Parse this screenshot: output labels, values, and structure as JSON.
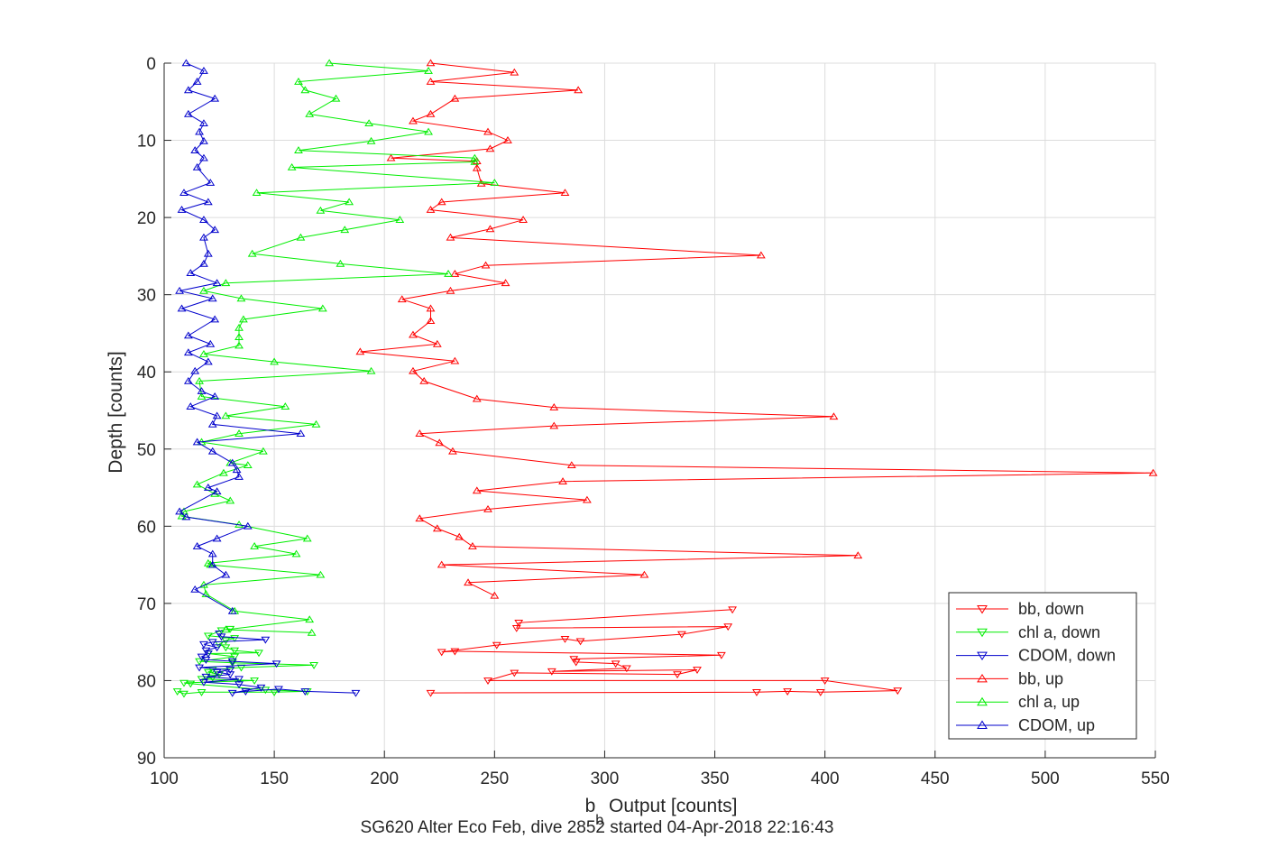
{
  "chart_data": {
    "type": "line",
    "orientation": "depth-profile",
    "xlabel": "b",
    "xlabel_subscript": "b",
    "xlabel_suffix": " Output [counts]",
    "ylabel": "Depth [counts]",
    "subtitle": "SG620 Alter Eco Feb, dive 2852 started 04-Apr-2018 22:16:43",
    "xlim": [
      100,
      550
    ],
    "ylim": [
      0,
      90
    ],
    "y_reversed": true,
    "grid": true,
    "legend_position": "bottom-right",
    "x_ticks": [
      100,
      150,
      200,
      250,
      300,
      350,
      400,
      450,
      500,
      550
    ],
    "y_ticks": [
      0,
      10,
      20,
      30,
      40,
      50,
      60,
      70,
      80,
      90
    ],
    "series": [
      {
        "name": "bb, down",
        "color": "#ff0000",
        "marker": "triangle-down",
        "points": [
          [
            221,
            81.6
          ],
          [
            369,
            81.5
          ],
          [
            383,
            81.4
          ],
          [
            398,
            81.5
          ],
          [
            433,
            81.3
          ],
          [
            400,
            80
          ],
          [
            247,
            80
          ],
          [
            259,
            79
          ],
          [
            333,
            79.2
          ],
          [
            342,
            78.6
          ],
          [
            276,
            78.8
          ],
          [
            310,
            78.4
          ],
          [
            305,
            77.8
          ],
          [
            287,
            77.6
          ],
          [
            286,
            77.2
          ],
          [
            353,
            76.7
          ],
          [
            232,
            76.2
          ],
          [
            226,
            76.3
          ],
          [
            251,
            75.4
          ],
          [
            282,
            74.6
          ],
          [
            289,
            74.9
          ],
          [
            335,
            74
          ],
          [
            356,
            73
          ],
          [
            260,
            73.2
          ],
          [
            261,
            72.5
          ],
          [
            358,
            70.8
          ]
        ]
      },
      {
        "name": "chl a, down",
        "color": "#00ee00",
        "marker": "triangle-down",
        "points": [
          [
            106,
            81.4
          ],
          [
            109,
            81.7
          ],
          [
            117,
            81.5
          ],
          [
            150,
            81.5
          ],
          [
            165,
            81.4
          ],
          [
            146,
            81.2
          ],
          [
            112,
            80.4
          ],
          [
            109,
            80.3
          ],
          [
            141,
            80
          ],
          [
            117,
            79.8
          ],
          [
            122,
            79.6
          ],
          [
            125,
            79.2
          ],
          [
            120,
            78.9
          ],
          [
            122,
            78.6
          ],
          [
            135,
            78.3
          ],
          [
            168,
            78
          ],
          [
            131,
            77.7
          ],
          [
            116,
            77.5
          ],
          [
            132,
            76.9
          ],
          [
            120,
            76.5
          ],
          [
            143,
            76.4
          ],
          [
            132,
            76.1
          ],
          [
            128,
            75.7
          ],
          [
            125,
            75.3
          ],
          [
            128,
            74.8
          ],
          [
            132,
            74.5
          ],
          [
            120,
            74.2
          ],
          [
            126,
            73.5
          ],
          [
            130,
            73.3
          ]
        ]
      },
      {
        "name": "CDOM, down",
        "color": "#0000cc",
        "marker": "triangle-down",
        "points": [
          [
            187,
            81.6
          ],
          [
            164,
            81.4
          ],
          [
            152,
            81.1
          ],
          [
            137,
            81.4
          ],
          [
            131,
            81.6
          ],
          [
            144,
            80.9
          ],
          [
            134,
            80.5
          ],
          [
            118,
            80.2
          ],
          [
            134,
            79.8
          ],
          [
            119,
            79.5
          ],
          [
            130,
            79.2
          ],
          [
            124,
            78.9
          ],
          [
            130,
            78.6
          ],
          [
            116,
            78.3
          ],
          [
            151,
            77.8
          ],
          [
            131,
            77.5
          ],
          [
            119,
            77.3
          ],
          [
            117,
            76.9
          ],
          [
            120,
            76.5
          ],
          [
            119,
            76.1
          ],
          [
            124,
            75.7
          ],
          [
            118,
            75.3
          ],
          [
            122,
            75
          ],
          [
            146,
            74.7
          ],
          [
            126,
            74.3
          ],
          [
            125,
            73.9
          ]
        ]
      },
      {
        "name": "bb, up",
        "color": "#ff0000",
        "marker": "triangle-up",
        "points": [
          [
            221,
            0
          ],
          [
            259,
            1.2
          ],
          [
            221,
            2.4
          ],
          [
            288,
            3.5
          ],
          [
            232,
            4.6
          ],
          [
            221,
            6.6
          ],
          [
            213,
            7.5
          ],
          [
            247,
            8.9
          ],
          [
            256,
            10
          ],
          [
            248,
            11.1
          ],
          [
            203,
            12.3
          ],
          [
            242,
            12.7
          ],
          [
            242,
            13.6
          ],
          [
            244,
            15.6
          ],
          [
            282,
            16.8
          ],
          [
            226,
            18
          ],
          [
            221,
            19
          ],
          [
            263,
            20.3
          ],
          [
            248,
            21.5
          ],
          [
            230,
            22.6
          ],
          [
            371,
            24.9
          ],
          [
            246,
            26.2
          ],
          [
            232,
            27.3
          ],
          [
            255,
            28.5
          ],
          [
            230,
            29.5
          ],
          [
            208,
            30.6
          ],
          [
            221,
            31.8
          ],
          [
            221,
            33.4
          ],
          [
            213,
            35.2
          ],
          [
            224,
            36.4
          ],
          [
            189,
            37.4
          ],
          [
            232,
            38.6
          ],
          [
            213,
            39.9
          ],
          [
            218,
            41.2
          ],
          [
            242,
            43.5
          ],
          [
            277,
            44.6
          ],
          [
            404,
            45.8
          ],
          [
            277,
            47
          ],
          [
            216,
            48
          ],
          [
            225,
            49.2
          ],
          [
            231,
            50.3
          ],
          [
            285,
            52.1
          ],
          [
            549,
            53.1
          ],
          [
            281,
            54.2
          ],
          [
            242,
            55.4
          ],
          [
            292,
            56.6
          ],
          [
            247,
            57.8
          ],
          [
            216,
            59
          ],
          [
            224,
            60.3
          ],
          [
            234,
            61.4
          ],
          [
            240,
            62.6
          ],
          [
            415,
            63.8
          ],
          [
            226,
            65
          ],
          [
            318,
            66.3
          ],
          [
            238,
            67.3
          ],
          [
            250,
            69
          ]
        ]
      },
      {
        "name": "chl a, up",
        "color": "#00ee00",
        "marker": "triangle-up",
        "points": [
          [
            175,
            0
          ],
          [
            220,
            1
          ],
          [
            161,
            2.4
          ],
          [
            164,
            3.5
          ],
          [
            178,
            4.6
          ],
          [
            166,
            6.6
          ],
          [
            193,
            7.8
          ],
          [
            220,
            8.9
          ],
          [
            194,
            10.1
          ],
          [
            161,
            11.3
          ],
          [
            241,
            12.3
          ],
          [
            241,
            12.8
          ],
          [
            158,
            13.5
          ],
          [
            250,
            15.5
          ],
          [
            142,
            16.8
          ],
          [
            184,
            18
          ],
          [
            171,
            19.1
          ],
          [
            207,
            20.3
          ],
          [
            182,
            21.6
          ],
          [
            162,
            22.6
          ],
          [
            140,
            24.7
          ],
          [
            180,
            26
          ],
          [
            229,
            27.3
          ],
          [
            128,
            28.5
          ],
          [
            118,
            29.5
          ],
          [
            135,
            30.5
          ],
          [
            172,
            31.8
          ],
          [
            136,
            33.2
          ],
          [
            134,
            34.3
          ],
          [
            134,
            35.5
          ],
          [
            134,
            36.6
          ],
          [
            118,
            37.7
          ],
          [
            150,
            38.7
          ],
          [
            194,
            39.9
          ],
          [
            116,
            41.2
          ],
          [
            117,
            43.2
          ],
          [
            155,
            44.5
          ],
          [
            128,
            45.7
          ],
          [
            169,
            46.8
          ],
          [
            134,
            48
          ],
          [
            117,
            49.1
          ],
          [
            145,
            50.3
          ],
          [
            130,
            51.8
          ],
          [
            138,
            52.1
          ],
          [
            127,
            53.1
          ],
          [
            115,
            54.6
          ],
          [
            123,
            55.8
          ],
          [
            130,
            56.7
          ],
          [
            109,
            58.1
          ],
          [
            108,
            58.7
          ],
          [
            134,
            59.8
          ],
          [
            165,
            61.6
          ],
          [
            141,
            62.6
          ],
          [
            160,
            63.6
          ],
          [
            120,
            64.8
          ],
          [
            121,
            65
          ],
          [
            171,
            66.3
          ],
          [
            118,
            67.6
          ],
          [
            119,
            68.8
          ],
          [
            132,
            71
          ],
          [
            166,
            72.1
          ],
          [
            128,
            73.4
          ],
          [
            167,
            73.8
          ]
        ]
      },
      {
        "name": "CDOM, up",
        "color": "#0000cc",
        "marker": "triangle-up",
        "points": [
          [
            110,
            0
          ],
          [
            118,
            1
          ],
          [
            115,
            2.4
          ],
          [
            111,
            3.5
          ],
          [
            123,
            4.6
          ],
          [
            111,
            6.6
          ],
          [
            118,
            7.8
          ],
          [
            116,
            8.9
          ],
          [
            118,
            10.1
          ],
          [
            114,
            11.3
          ],
          [
            118,
            12.3
          ],
          [
            115,
            13.5
          ],
          [
            121,
            15.5
          ],
          [
            109,
            16.8
          ],
          [
            120,
            18
          ],
          [
            108,
            19
          ],
          [
            118,
            20.3
          ],
          [
            123,
            21.6
          ],
          [
            118,
            22.6
          ],
          [
            120,
            24.7
          ],
          [
            118,
            26
          ],
          [
            112,
            27.2
          ],
          [
            124,
            28.5
          ],
          [
            107,
            29.5
          ],
          [
            122,
            30.5
          ],
          [
            108,
            31.8
          ],
          [
            123,
            33.2
          ],
          [
            111,
            35.3
          ],
          [
            121,
            36.4
          ],
          [
            111,
            37.5
          ],
          [
            120,
            38.7
          ],
          [
            114,
            39.9
          ],
          [
            111,
            41.2
          ],
          [
            117,
            42.5
          ],
          [
            123,
            43.2
          ],
          [
            112,
            44.5
          ],
          [
            124,
            45.7
          ],
          [
            122,
            46.8
          ],
          [
            162,
            48
          ],
          [
            115,
            49.1
          ],
          [
            122,
            50.3
          ],
          [
            131,
            51.8
          ],
          [
            133,
            52.7
          ],
          [
            134,
            53.6
          ],
          [
            120,
            55
          ],
          [
            124,
            55.5
          ],
          [
            107,
            58.1
          ],
          [
            110,
            58.8
          ],
          [
            138,
            60
          ],
          [
            124,
            61.6
          ],
          [
            115,
            62.6
          ],
          [
            122,
            63.6
          ],
          [
            122,
            65
          ],
          [
            128,
            66.3
          ],
          [
            114,
            68.2
          ],
          [
            131,
            71
          ]
        ]
      }
    ]
  }
}
